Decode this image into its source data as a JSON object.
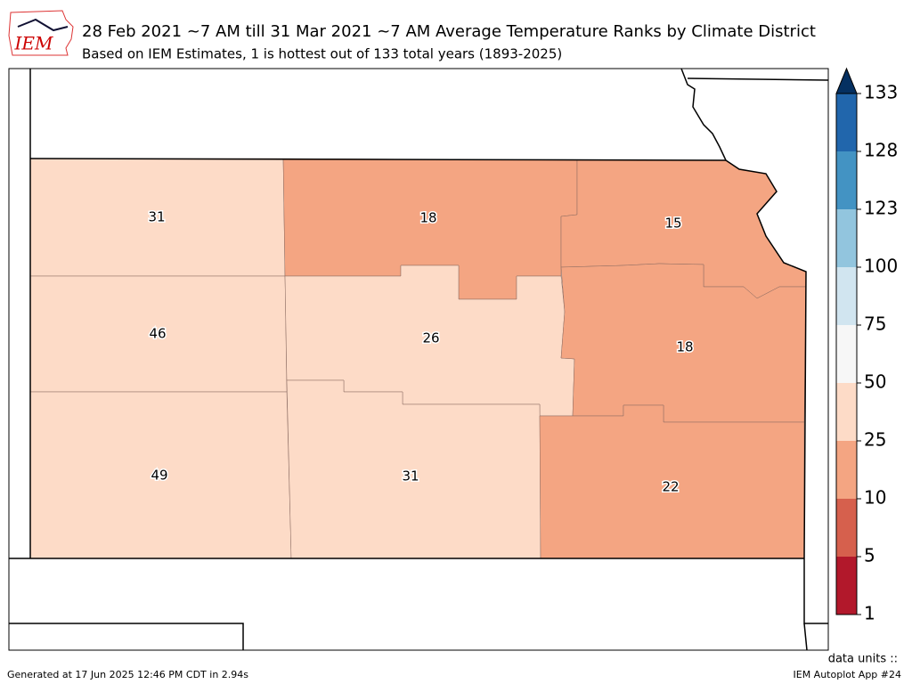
{
  "header": {
    "logo": "IEM",
    "title": "28 Feb 2021 ~7 AM till 31 Mar 2021 ~7 AM Average Temperature Ranks by Climate District",
    "subtitle": "Based on IEM Estimates, 1 is hottest out of 133 total years (1893-2025)"
  },
  "map": {
    "districts": [
      31,
      18,
      15,
      46,
      26,
      18,
      49,
      31,
      22
    ]
  },
  "colorbar": {
    "ticks": [
      1,
      5,
      10,
      25,
      50,
      75,
      100,
      123,
      128,
      133
    ],
    "colors": [
      "#b2182b",
      "#d6604d",
      "#f4a582",
      "#fddbc7",
      "#f7f7f7",
      "#d1e5f0",
      "#92c5de",
      "#4393c3",
      "#2166ac"
    ],
    "extend_color": "#053061"
  },
  "footer": {
    "generated": "Generated at 17 Jun 2025 12:46 PM CDT in 2.94s",
    "units": "data units ::",
    "app": "IEM Autoplot App #24"
  }
}
